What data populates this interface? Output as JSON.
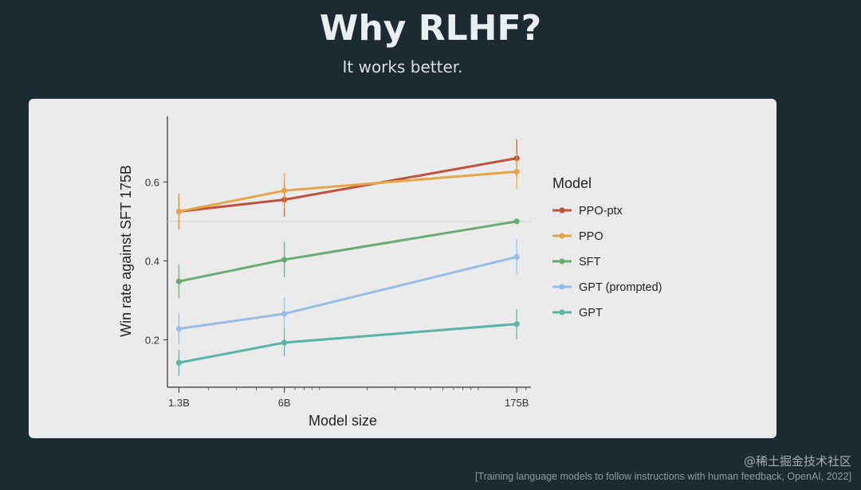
{
  "slide": {
    "title": "Why RLHF?",
    "subtitle": "It works better.",
    "citation": "[Training language models to follow instructions with human feedback, OpenAI, 2022]",
    "watermark": "@稀土掘金技术社区"
  },
  "chart_data": {
    "type": "line",
    "title": "",
    "xlabel": "Model size",
    "ylabel": "Win rate against SFT 175B",
    "x_scale": "log",
    "x": [
      1.3,
      6,
      175
    ],
    "x_tick_labels": [
      "1.3B",
      "6B",
      "175B"
    ],
    "xlim": [
      1.1,
      215
    ],
    "ylim": [
      0.08,
      0.75
    ],
    "y_ticks": [
      0.2,
      0.4,
      0.6
    ],
    "y_tick_labels": [
      "0.2",
      "0.4",
      "0.6"
    ],
    "reference_line": 0.5,
    "grid": false,
    "legend_title": "Model",
    "legend_position": "right",
    "series": [
      {
        "name": "PPO-ptx",
        "color": "#c0513d",
        "values": [
          0.525,
          0.555,
          0.66
        ],
        "err": [
          0.045,
          0.043,
          0.047
        ]
      },
      {
        "name": "PPO",
        "color": "#e5a64a",
        "values": [
          0.525,
          0.578,
          0.626
        ],
        "err": [
          0.045,
          0.045,
          0.045
        ]
      },
      {
        "name": "SFT",
        "color": "#6aab73",
        "values": [
          0.348,
          0.403,
          0.5
        ],
        "err": [
          0.043,
          0.045,
          0
        ]
      },
      {
        "name": "GPT (prompted)",
        "color": "#98bde8",
        "values": [
          0.228,
          0.266,
          0.41
        ],
        "err": [
          0.04,
          0.04,
          0.045
        ]
      },
      {
        "name": "GPT",
        "color": "#5bb3a9",
        "values": [
          0.142,
          0.193,
          0.24
        ],
        "err": [
          0.033,
          0.035,
          0.038
        ]
      }
    ]
  }
}
